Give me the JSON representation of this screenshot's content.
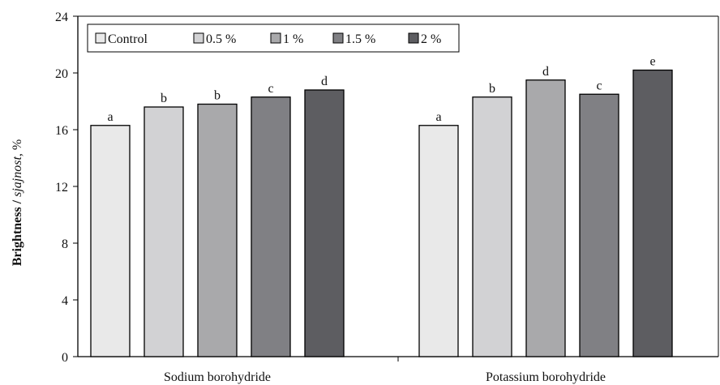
{
  "chart_data": {
    "type": "bar",
    "categories": [
      "Sodium borohydride",
      "Potassium borohydride"
    ],
    "series": [
      {
        "name": "Control",
        "color": "#e9e9e9",
        "values": [
          16.3,
          16.3
        ],
        "labels": [
          "a",
          "a"
        ]
      },
      {
        "name": "0.5 %",
        "color": "#d2d2d4",
        "values": [
          17.6,
          18.3
        ],
        "labels": [
          "b",
          "b"
        ]
      },
      {
        "name": "1 %",
        "color": "#a9a9ab",
        "values": [
          17.8,
          19.5
        ],
        "labels": [
          "b",
          "d"
        ]
      },
      {
        "name": "1.5 %",
        "color": "#808084",
        "values": [
          18.3,
          18.5
        ],
        "labels": [
          "c",
          "c"
        ]
      },
      {
        "name": "2 %",
        "color": "#5d5d61",
        "values": [
          18.8,
          20.2
        ],
        "labels": [
          "d",
          "e"
        ]
      }
    ],
    "ylabel_bold": "Brightness",
    "ylabel_sep": " / ",
    "ylabel_italic": "sjajnost",
    "ylabel_unit": ", %",
    "ylim": [
      0,
      24
    ],
    "yticks": [
      0,
      4,
      8,
      12,
      16,
      20,
      24
    ],
    "legend_position": "top-left",
    "grid": false
  }
}
